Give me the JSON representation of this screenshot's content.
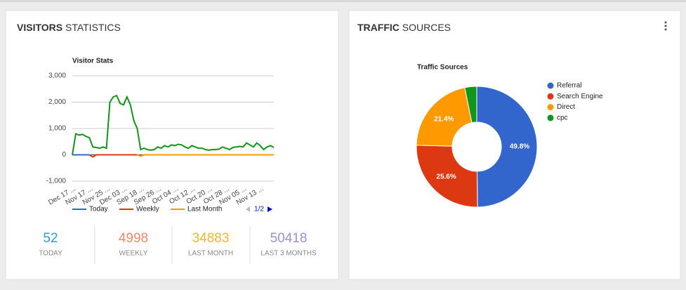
{
  "visitors": {
    "title_bold": "VISITORS",
    "title_rest": "STATISTICS",
    "chart": {
      "type": "line",
      "title": "Visitor Stats",
      "x": [
        "Dec 17 ...",
        null,
        null,
        null,
        null,
        "Nov 17 ...",
        null,
        null,
        null,
        null,
        "Nov 25 ...",
        null,
        null,
        null,
        null,
        "Dec 03 ...",
        null,
        null,
        null,
        null,
        "Sep 18 ...",
        null,
        null,
        null,
        null,
        "Sep 26 ...",
        null,
        null,
        null,
        null,
        "Oct 04 ...",
        null,
        null,
        null,
        null,
        "Oct 12 ...",
        null,
        null,
        null,
        null,
        "Oct 20 ...",
        null,
        null,
        null,
        null,
        "Oct 28 ...",
        null,
        null,
        null,
        null,
        "Nov 05 ...",
        null,
        null,
        null,
        null,
        "Nov 13 ...",
        null,
        null,
        null,
        null
      ],
      "series": [
        {
          "name": "Today",
          "color": "#3366cc",
          "values": [
            0,
            0,
            0,
            0,
            0,
            0,
            null,
            null,
            null,
            null,
            null,
            null,
            null,
            null,
            null,
            null,
            null,
            null,
            null,
            null,
            null,
            null,
            null,
            null,
            null,
            null,
            null,
            null,
            null,
            null,
            null,
            null,
            null,
            null,
            null,
            null,
            null,
            null,
            null,
            null,
            null,
            null,
            null,
            null,
            null,
            null,
            null,
            null,
            null,
            null,
            null,
            null,
            null,
            null,
            null,
            null,
            null,
            null,
            null,
            null
          ]
        },
        {
          "name": "Weekly",
          "color": "#dc3912",
          "values": [
            null,
            null,
            null,
            null,
            null,
            0,
            -80,
            0,
            0,
            0,
            0,
            0,
            0,
            0,
            0,
            0,
            0,
            0,
            0,
            0,
            null,
            null,
            null,
            null,
            null,
            null,
            null,
            null,
            null,
            null,
            null,
            null,
            null,
            null,
            null,
            null,
            null,
            null,
            null,
            null,
            null,
            null,
            null,
            null,
            null,
            null,
            null,
            null,
            null,
            null,
            null,
            null,
            null,
            null,
            null,
            null,
            null,
            null,
            null,
            null
          ]
        },
        {
          "name": "Last Month",
          "color": "#ff9900",
          "values": [
            null,
            null,
            null,
            null,
            null,
            null,
            null,
            null,
            null,
            null,
            null,
            null,
            null,
            null,
            null,
            null,
            null,
            null,
            null,
            0,
            -50,
            0,
            0,
            0,
            0,
            0,
            0,
            0,
            0,
            0,
            0,
            0,
            0,
            0,
            0,
            0,
            0,
            0,
            0,
            0,
            0,
            0,
            0,
            0,
            0,
            0,
            0,
            0,
            0,
            0,
            0,
            0,
            0,
            0,
            0,
            0,
            0,
            0,
            0,
            0
          ]
        },
        {
          "color": "#109618",
          "values": [
            0,
            800,
            750,
            780,
            700,
            650,
            300,
            280,
            250,
            300,
            250,
            2000,
            2200,
            2250,
            1950,
            1900,
            2200,
            1900,
            1300,
            1000,
            200,
            250,
            200,
            180,
            200,
            300,
            250,
            350,
            300,
            380,
            350,
            400,
            380,
            300,
            250,
            350,
            300,
            250,
            250,
            200,
            180,
            200,
            200,
            220,
            300,
            250,
            200,
            280,
            300,
            320,
            300,
            450,
            380,
            300,
            450,
            350,
            200,
            300,
            350,
            280
          ]
        }
      ],
      "ylim": [
        -1000,
        3000
      ],
      "yticks": [
        {
          "value": -1000,
          "label": "-1,000"
        },
        0,
        {
          "value": 1000,
          "label": "1,000"
        },
        {
          "value": 2000,
          "label": "2,000"
        },
        {
          "value": 3000,
          "label": "3,000"
        }
      ],
      "grid": true,
      "legend_page": "1/2"
    },
    "stats": [
      {
        "value": 52,
        "label": "TODAY",
        "color": "#2e9be6"
      },
      {
        "value": 4998,
        "label": "WEEKLY",
        "color": "#f2886d"
      },
      {
        "value": 34883,
        "label": "LAST MONTH",
        "color": "#f3b82c"
      },
      {
        "value": 50418,
        "label": "LAST 3 MONTHS",
        "color": "#a08fd3"
      }
    ]
  },
  "traffic": {
    "title_bold": "TRAFFIC",
    "title_rest": "SOURCES",
    "chart": {
      "type": "pie",
      "title": "Traffic Sources",
      "categories": [
        "Referral",
        "Search Engine",
        "Direct",
        "cpc"
      ],
      "values": [
        49.8,
        25.6,
        21.4,
        3.2
      ],
      "value_labels": [
        "49.8%",
        "25.6%",
        "21.4%",
        null
      ],
      "colors": [
        "#3366cc",
        "#dc3912",
        "#ff9900",
        "#109618"
      ]
    }
  }
}
